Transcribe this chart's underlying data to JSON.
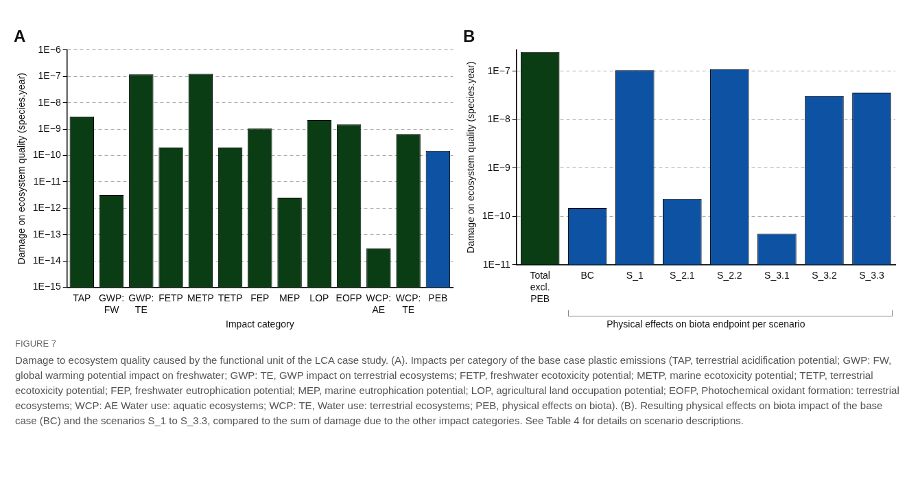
{
  "chart_data": [
    {
      "type": "bar",
      "title": "A",
      "xlabel": "Impact category",
      "ylabel": "Damage on ecosystem quality (species.year)",
      "categories": [
        "TAP",
        "GWP: FW",
        "GWP: TE",
        "FETP",
        "METP",
        "TETP",
        "FEP",
        "MEP",
        "LOP",
        "EOFP",
        "WCP: AE",
        "WCP: TE",
        "PEB"
      ],
      "values": [
        3e-09,
        3.2e-12,
        1.2e-07,
        2e-10,
        1.25e-07,
        2e-10,
        1.05e-09,
        2.5e-12,
        2.2e-09,
        1.5e-09,
        3e-14,
        6.5e-10,
        1.5e-10
      ],
      "colors": [
        "#0b3d14",
        "#0b3d14",
        "#0b3d14",
        "#0b3d14",
        "#0b3d14",
        "#0b3d14",
        "#0b3d14",
        "#0b3d14",
        "#0b3d14",
        "#0b3d14",
        "#0b3d14",
        "#0b3d14",
        "#0d52a3"
      ],
      "log": true,
      "grid": "y",
      "ylim": [
        1e-15,
        1e-06
      ],
      "yticks": [
        {
          "value": 1e-15,
          "label": "1E−15"
        },
        {
          "value": 1e-14,
          "label": "1E−14"
        },
        {
          "value": 1e-13,
          "label": "1E−13"
        },
        {
          "value": 1e-12,
          "label": "1E−12"
        },
        {
          "value": 1e-11,
          "label": "1E−11"
        },
        {
          "value": 1e-10,
          "label": "1E−10"
        },
        {
          "value": 1e-09,
          "label": "1E−9"
        },
        {
          "value": 1e-08,
          "label": "1E−8"
        },
        {
          "value": 1e-07,
          "label": "1E−7"
        },
        {
          "value": 1e-06,
          "label": "1E−6"
        }
      ],
      "annotations": [
        "FIGURE 7",
        "Damage to ecosystem quality caused by the functional unit of the LCA case study. (A). Impacts per category of the base case plastic emissions (TAP, terrestrial acidification potential; GWP: FW, global warming potential impact on freshwater; GWP: TE, GWP impact on terrestrial ecosystems; FETP, freshwater ecotoxicity potential; METP, marine ecotoxicity potential; TETP, terrestrial ecotoxicity potential; FEP, freshwater eutrophication potential; MEP, marine eutrophication potential; LOP, agricultural land occupation potential; EOFP, Photochemical oxidant formation: terrestrial ecosystems; WCP: AE Water use: aquatic ecosystems; WCP: TE, Water use: terrestrial ecosystems; PEB, physical effects on biota). (B). Resulting physical effects on biota impact of the base case (BC) and the scenarios S_1 to S_3.3, compared to the sum of damage due to the other impact categories. See Table 4 for details on scenario descriptions."
      ]
    },
    {
      "type": "bar",
      "title": "B",
      "xlabel": "Physical effects on biota endpoint per scenario",
      "ylabel": "Damage on ecosystem quality (species.year)",
      "categories": [
        "Total excl. PEB",
        "BC",
        "S_1",
        "S_2.1",
        "S_2.2",
        "S_3.1",
        "S_3.2",
        "S_3.3"
      ],
      "values": [
        2.5e-07,
        1.5e-10,
        1.05e-07,
        2.3e-10,
        1.1e-07,
        4.4e-11,
        3.1e-08,
        3.6e-08
      ],
      "colors": [
        "#0b3d14",
        "#0d52a3",
        "#0d52a3",
        "#0d52a3",
        "#0d52a3",
        "#0d52a3",
        "#0d52a3",
        "#0d52a3"
      ],
      "log": true,
      "grid": "y",
      "ylim": [
        1e-11,
        2.75e-07
      ],
      "yticks": [
        {
          "value": 1e-11,
          "label": "1E−11"
        },
        {
          "value": 1e-10,
          "label": "1E−10"
        },
        {
          "value": 1e-09,
          "label": "1E−9"
        },
        {
          "value": 1e-08,
          "label": "1E−8"
        },
        {
          "value": 1e-07,
          "label": "1E−7"
        }
      ]
    }
  ]
}
